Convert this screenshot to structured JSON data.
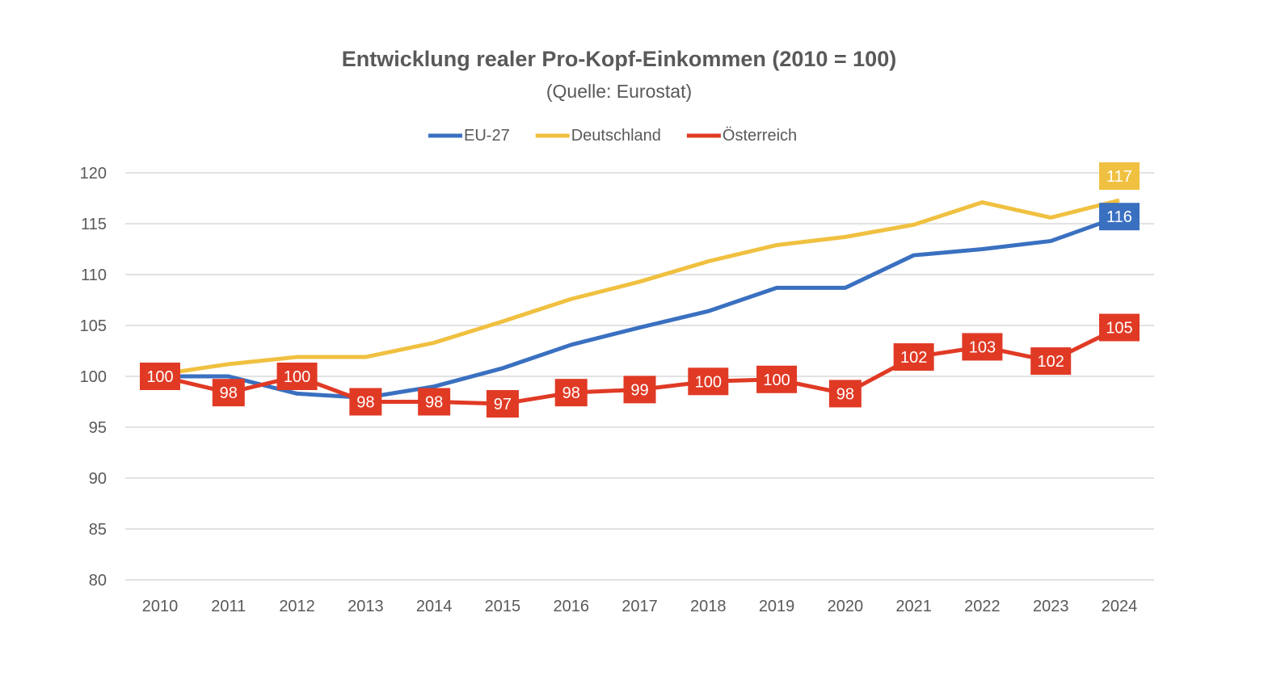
{
  "chart_data": {
    "type": "line",
    "title": "Entwicklung realer Pro-Kopf-Einkommen (2010 = 100)",
    "subtitle": "(Quelle: Eurostat)",
    "xlabel": "",
    "ylabel": "",
    "x": [
      "2010",
      "2011",
      "2012",
      "2013",
      "2014",
      "2015",
      "2016",
      "2017",
      "2018",
      "2019",
      "2020",
      "2021",
      "2022",
      "2023",
      "2024"
    ],
    "ylim": [
      80,
      120
    ],
    "yticks": [
      80,
      85,
      90,
      95,
      100,
      105,
      110,
      115,
      120
    ],
    "grid": true,
    "legend_position": "top",
    "series": [
      {
        "name": "EU-27",
        "color": "#3A70C0",
        "values": [
          100.0,
          100.0,
          98.3,
          97.9,
          99.0,
          100.8,
          103.1,
          104.8,
          106.4,
          108.7,
          108.7,
          111.9,
          112.5,
          113.3,
          115.7
        ],
        "labels": [
          null,
          null,
          null,
          null,
          null,
          null,
          null,
          null,
          null,
          null,
          null,
          null,
          null,
          null,
          "116"
        ]
      },
      {
        "name": "Deutschland",
        "color": "#F0C040",
        "values": [
          100.2,
          101.2,
          101.9,
          101.9,
          103.3,
          105.4,
          107.6,
          109.3,
          111.3,
          112.9,
          113.7,
          114.9,
          117.1,
          115.6,
          117.3
        ],
        "labels": [
          null,
          null,
          null,
          null,
          null,
          null,
          null,
          null,
          null,
          null,
          null,
          null,
          null,
          null,
          "117"
        ]
      },
      {
        "name": "Österreich",
        "color": "#E03A25",
        "values": [
          100.0,
          98.4,
          100.0,
          97.5,
          97.5,
          97.3,
          98.4,
          98.7,
          99.5,
          99.7,
          98.3,
          101.9,
          102.9,
          101.5,
          104.8
        ],
        "labels": [
          "100",
          "98",
          "100",
          "98",
          "98",
          "97",
          "98",
          "99",
          "100",
          "100",
          "98",
          "102",
          "103",
          "102",
          "105"
        ]
      }
    ]
  }
}
